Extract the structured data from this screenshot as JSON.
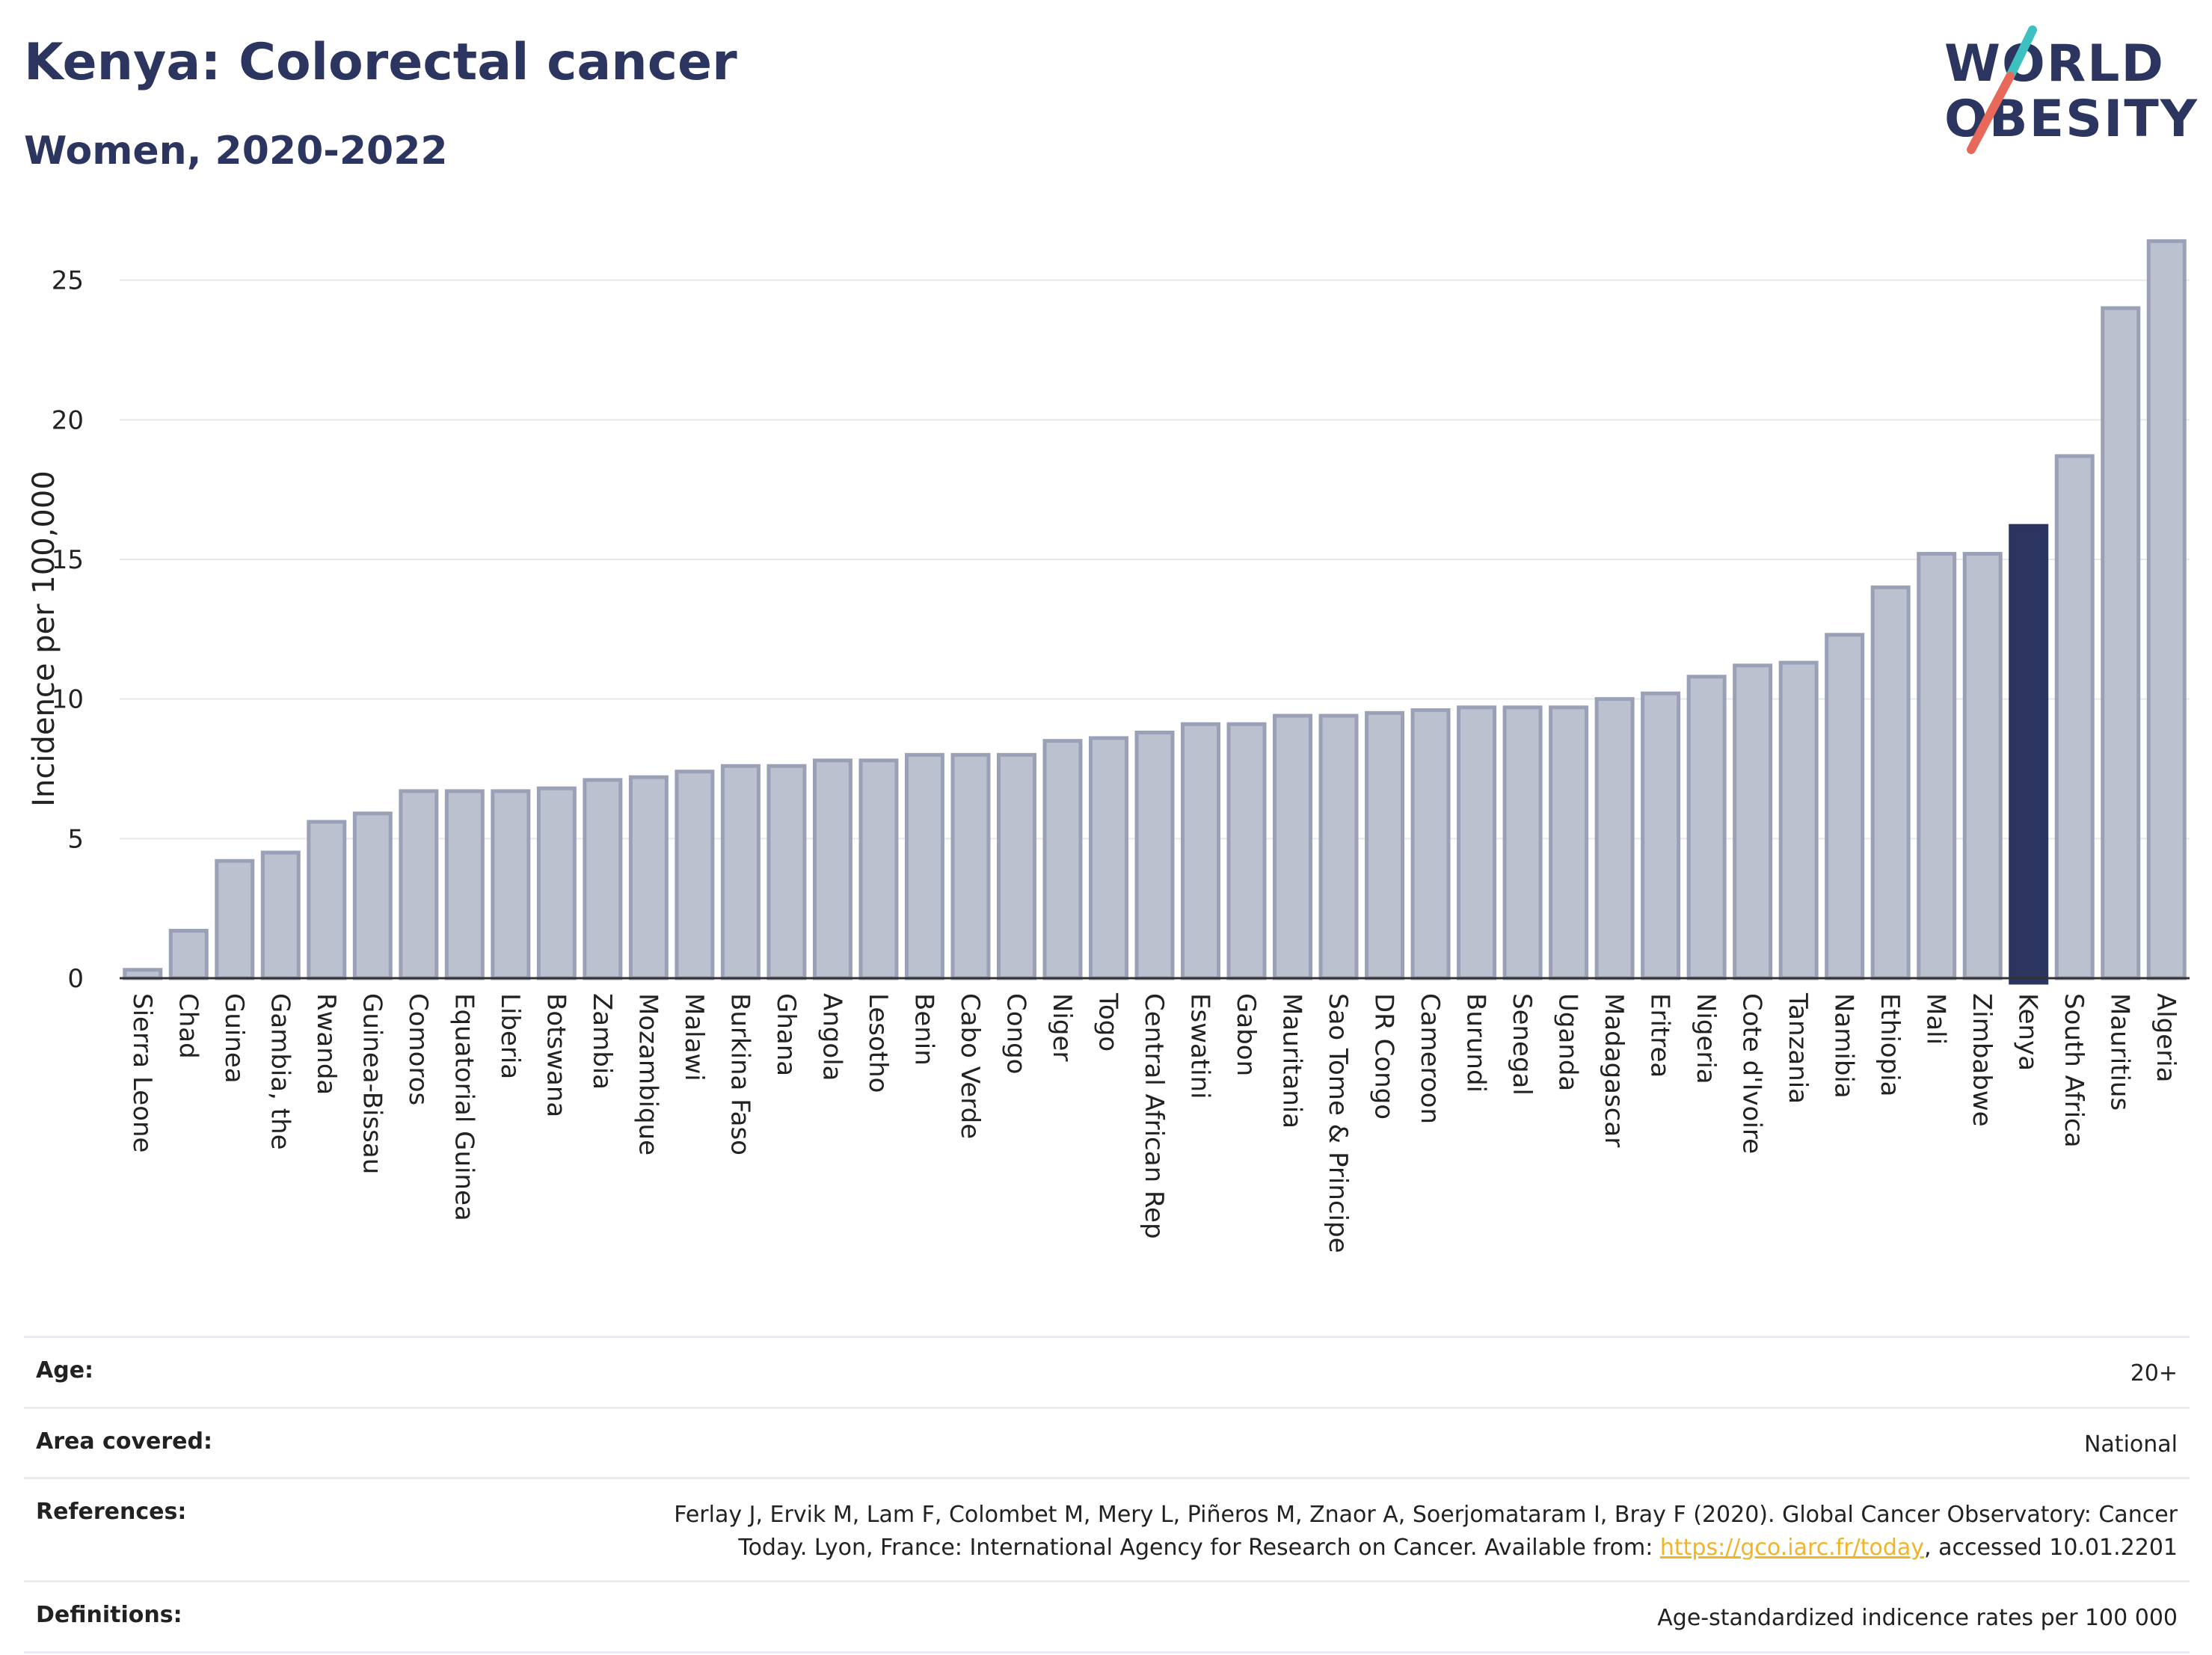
{
  "header": {
    "title": "Kenya: Colorectal cancer",
    "subtitle": "Women, 2020-2022"
  },
  "logo": {
    "line1": "WORLD",
    "line2": "OBESITY",
    "accent_colors": [
      "#3cc0c0",
      "#e8685a"
    ]
  },
  "colors": {
    "bar_default": "#bcc1d0",
    "bar_default_stroke": "#9aa1b7",
    "bar_highlight": "#2b3560",
    "text_dark": "#2b3560",
    "link": "#f0b429"
  },
  "chart_data": {
    "type": "bar",
    "title": "",
    "xlabel": "",
    "ylabel": "Incidence per 100,000",
    "ylim": [
      0,
      27
    ],
    "yticks": [
      0,
      5,
      10,
      15,
      20,
      25
    ],
    "grid": true,
    "highlight": "Kenya",
    "categories": [
      "Sierra Leone",
      "Chad",
      "Guinea",
      "Gambia, the",
      "Rwanda",
      "Guinea-Bissau",
      "Comoros",
      "Equatorial Guinea",
      "Liberia",
      "Botswana",
      "Zambia",
      "Mozambique",
      "Malawi",
      "Burkina Faso",
      "Ghana",
      "Angola",
      "Lesotho",
      "Benin",
      "Cabo Verde",
      "Congo",
      "Niger",
      "Togo",
      "Central African Rep",
      "Eswatini",
      "Gabon",
      "Mauritania",
      "Sao Tome & Principe",
      "DR Congo",
      "Cameroon",
      "Burundi",
      "Senegal",
      "Uganda",
      "Madagascar",
      "Eritrea",
      "Nigeria",
      "Cote d'Ivoire",
      "Tanzania",
      "Namibia",
      "Ethiopia",
      "Mali",
      "Zimbabwe",
      "Kenya",
      "South Africa",
      "Mauritius",
      "Algeria"
    ],
    "values": [
      0.3,
      1.7,
      4.2,
      4.5,
      5.6,
      5.9,
      6.7,
      6.7,
      6.7,
      6.8,
      7.1,
      7.2,
      7.4,
      7.6,
      7.6,
      7.8,
      7.8,
      8.0,
      8.0,
      8.0,
      8.5,
      8.6,
      8.8,
      9.1,
      9.1,
      9.4,
      9.4,
      9.5,
      9.6,
      9.7,
      9.7,
      9.7,
      10.0,
      10.2,
      10.8,
      11.2,
      11.3,
      12.3,
      14.0,
      15.2,
      15.2,
      16.2,
      18.7,
      24.0,
      26.4
    ]
  },
  "meta": {
    "age_label": "Age:",
    "age_value": "20+",
    "area_label": "Area covered:",
    "area_value": "National",
    "references_label": "References:",
    "references_line1": "Ferlay J, Ervik M, Lam F, Colombet M, Mery L, Piñeros M, Znaor A, Soerjomataram I, Bray F (2020). Global Cancer Observatory: Cancer",
    "references_line2_pre": "Today. Lyon, France: International Agency for Research on Cancer. Available from: ",
    "references_link": "https://gco.iarc.fr/today",
    "references_line2_post": ", accessed 10.01.2201",
    "definitions_label": "Definitions:",
    "definitions_value": "Age-standardized indicence rates per 100 000"
  }
}
